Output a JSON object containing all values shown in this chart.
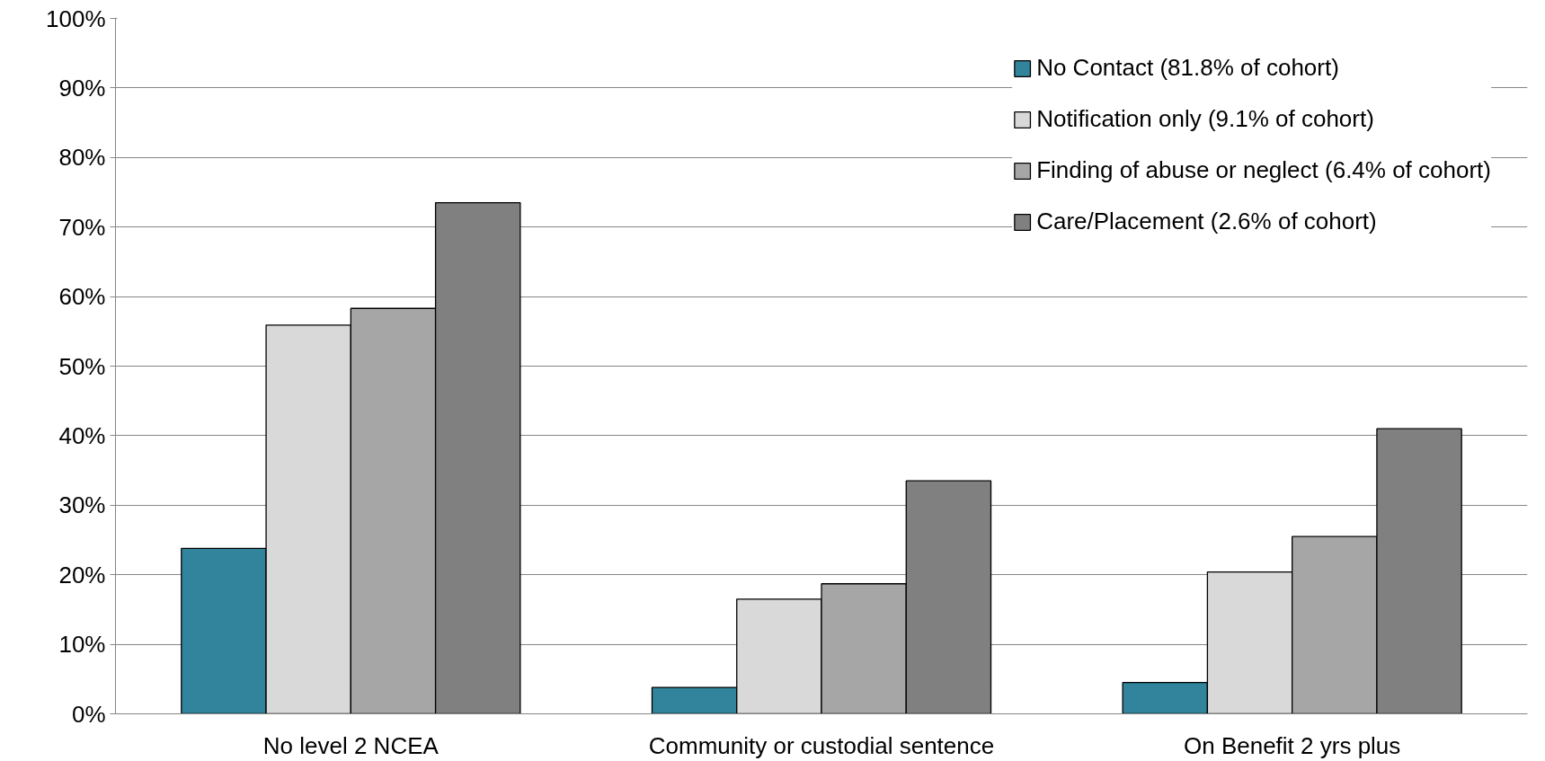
{
  "chart_data": {
    "type": "bar",
    "categories": [
      "No level 2 NCEA",
      "Community or custodial sentence",
      "On Benefit 2 yrs plus"
    ],
    "series": [
      {
        "name": "No Contact (81.8% of cohort)",
        "color": "#31849b",
        "values": [
          23.8,
          3.8,
          4.5
        ]
      },
      {
        "name": "Notification only (9.1% of cohort)",
        "color": "#d9d9d9",
        "values": [
          55.9,
          16.5,
          20.4
        ]
      },
      {
        "name": "Finding of abuse or neglect (6.4% of cohort)",
        "color": "#a6a6a6",
        "values": [
          58.3,
          18.7,
          25.5
        ]
      },
      {
        "name": "Care/Placement (2.6% of cohort)",
        "color": "#808080",
        "values": [
          73.5,
          33.5,
          41.0
        ]
      }
    ],
    "ylim": [
      0,
      100
    ],
    "yticks": [
      {
        "value": 0,
        "label": "0%"
      },
      {
        "value": 10,
        "label": "10%"
      },
      {
        "value": 20,
        "label": "20%"
      },
      {
        "value": 30,
        "label": "30%"
      },
      {
        "value": 40,
        "label": "40%"
      },
      {
        "value": 50,
        "label": "50%"
      },
      {
        "value": 60,
        "label": "60%"
      },
      {
        "value": 70,
        "label": "70%"
      },
      {
        "value": 80,
        "label": "80%"
      },
      {
        "value": 90,
        "label": "90%"
      },
      {
        "value": 100,
        "label": "100%"
      }
    ],
    "grid": "y",
    "legend": "top right"
  }
}
